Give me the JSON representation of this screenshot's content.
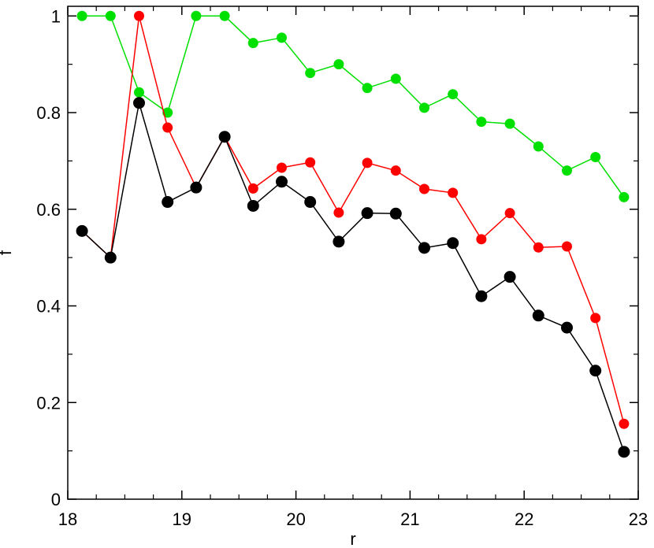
{
  "chart_data": {
    "type": "line",
    "title": "",
    "xlabel": "r",
    "ylabel": "f",
    "xlim": [
      18,
      23
    ],
    "ylim": [
      0,
      1.02
    ],
    "grid": false,
    "legend": "none",
    "x_ticks": [
      "18",
      "19",
      "20",
      "21",
      "22",
      "23"
    ],
    "y_ticks": [
      "0",
      "0.2",
      "0.4",
      "0.6",
      "0.8",
      "1"
    ],
    "x_tick_values": [
      18,
      19,
      20,
      21,
      22,
      23
    ],
    "y_tick_values": [
      0,
      0.2,
      0.4,
      0.6,
      0.8,
      1
    ],
    "x_minor_step": 0.25,
    "y_minor_step": 0.1,
    "x": [
      18.125,
      18.375,
      18.625,
      18.875,
      19.125,
      19.375,
      19.625,
      19.875,
      20.125,
      20.375,
      20.625,
      20.875,
      21.125,
      21.375,
      21.625,
      21.875,
      22.125,
      22.375,
      22.625,
      22.875
    ],
    "series": [
      {
        "color": "#00e000",
        "marker_size": "small",
        "values": [
          1.0,
          1.0,
          0.842,
          0.8,
          1.0,
          1.0,
          0.944,
          0.955,
          0.882,
          0.9,
          0.851,
          0.87,
          0.81,
          0.838,
          0.781,
          0.777,
          0.73,
          0.68,
          0.708,
          0.625
        ]
      },
      {
        "color": "#ff0000",
        "marker_size": "small",
        "values": [
          0.555,
          0.5,
          1.0,
          0.769,
          0.645,
          0.75,
          0.643,
          0.686,
          0.697,
          0.593,
          0.696,
          0.68,
          0.642,
          0.634,
          0.538,
          0.592,
          0.521,
          0.523,
          0.375,
          0.156
        ]
      },
      {
        "color": "#000000",
        "marker_size": "large",
        "values": [
          0.555,
          0.5,
          0.82,
          0.615,
          0.645,
          0.75,
          0.607,
          0.657,
          0.615,
          0.533,
          0.592,
          0.591,
          0.52,
          0.53,
          0.42,
          0.46,
          0.38,
          0.355,
          0.266,
          0.098
        ]
      }
    ]
  }
}
